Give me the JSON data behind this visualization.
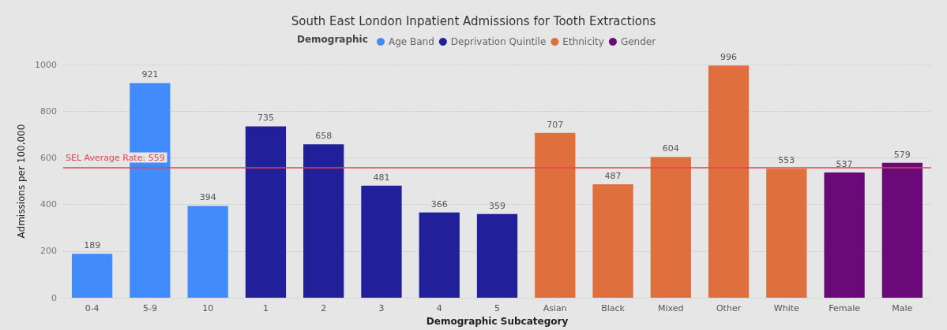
{
  "chart_data": {
    "type": "bar",
    "title": "South East London Inpatient Admissions for Tooth Extractions",
    "xlabel": "Demographic Subcategory",
    "ylabel": "Admissions per 100,000",
    "legend_title": "Demographic",
    "legend": "top",
    "grid": "y",
    "data_labels": true,
    "stacked": true,
    "categories": [
      "0-4",
      "5-9",
      "10",
      "1",
      "2",
      "3",
      "4",
      "5",
      "Asian",
      "Black",
      "Mixed",
      "Other",
      "White",
      "Female",
      "Male"
    ],
    "series": [
      {
        "name": "Age Band",
        "color": "#418bfc",
        "values": [
          189,
          921,
          394,
          null,
          null,
          null,
          null,
          null,
          null,
          null,
          null,
          null,
          null,
          null,
          null
        ]
      },
      {
        "name": "Deprivation Quintile",
        "color": "#221f9a",
        "values": [
          null,
          null,
          null,
          735,
          658,
          481,
          366,
          359,
          null,
          null,
          null,
          null,
          null,
          null,
          null
        ]
      },
      {
        "name": "Ethnicity",
        "color": "#df6f3c",
        "values": [
          null,
          null,
          null,
          null,
          null,
          null,
          null,
          null,
          707,
          487,
          604,
          996,
          553,
          null,
          null
        ]
      },
      {
        "name": "Gender",
        "color": "#6a0a78",
        "values": [
          null,
          null,
          null,
          null,
          null,
          null,
          null,
          null,
          null,
          null,
          null,
          null,
          null,
          537,
          579
        ]
      }
    ],
    "ylim": [
      0,
      1000
    ],
    "yticks": [
      0,
      200,
      400,
      600,
      800,
      1000
    ],
    "ref_lines": [
      {
        "axis": "y",
        "value": 559,
        "label": "SEL Average Rate: 559",
        "color": "#e0474c"
      }
    ]
  }
}
